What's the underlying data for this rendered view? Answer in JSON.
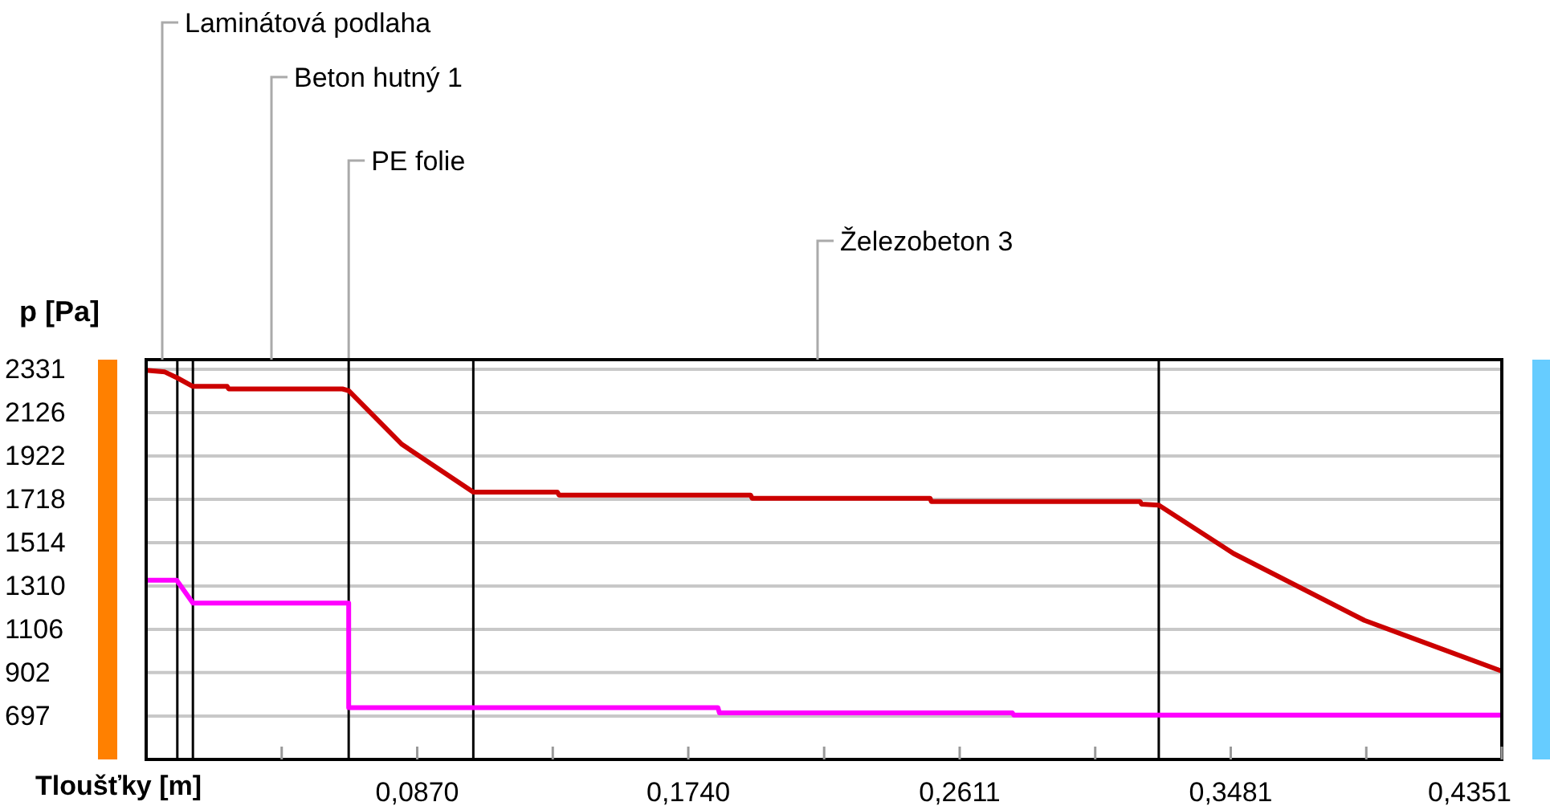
{
  "chart_data": {
    "type": "line",
    "xlabel": "Tloušťky [m]",
    "ylabel": "p [Pa]",
    "xlim": [
      0,
      0.4351
    ],
    "ylim": [
      493,
      2376
    ],
    "xticks": [
      {
        "value": 0.0435,
        "label": null
      },
      {
        "value": 0.087,
        "label": "0,0870"
      },
      {
        "value": 0.1305,
        "label": null
      },
      {
        "value": 0.174,
        "label": "0,1740"
      },
      {
        "value": 0.2176,
        "label": null
      },
      {
        "value": 0.2611,
        "label": "0,2611"
      },
      {
        "value": 0.3046,
        "label": null
      },
      {
        "value": 0.3481,
        "label": "0,3481"
      },
      {
        "value": 0.3916,
        "label": null
      },
      {
        "value": 0.4351,
        "label": "0,4351"
      }
    ],
    "yticks": [
      697,
      902,
      1106,
      1310,
      1514,
      1718,
      1922,
      2126,
      2331
    ],
    "grid": "y",
    "marker": "none",
    "line_style": "solid",
    "series": [
      {
        "color": "#cc0000",
        "x": [
          0,
          0.006,
          0.01,
          0.015,
          0.026,
          0.0265,
          0.063,
          0.065,
          0.082,
          0.105,
          0.132,
          0.1325,
          0.194,
          0.1945,
          0.2516,
          0.252,
          0.319,
          0.3195,
          0.325,
          0.349,
          0.391,
          0.4351
        ],
        "values": [
          2326,
          2318,
          2290,
          2250,
          2250,
          2238,
          2238,
          2230,
          1978,
          1752,
          1752,
          1738,
          1738,
          1723,
          1723,
          1708,
          1708,
          1695,
          1691,
          1463,
          1148,
          909
        ]
      },
      {
        "color": "#ff00ff",
        "x": [
          0,
          0.0098,
          0.015,
          0.065,
          0.065,
          0.1835,
          0.184,
          0.278,
          0.2785,
          0.4351
        ],
        "values": [
          1337,
          1337,
          1229,
          1229,
          737,
          737,
          712,
          712,
          702,
          702
        ]
      }
    ],
    "ref_lines": [
      {
        "axis": "x",
        "value": 0.01,
        "color": "#000000"
      },
      {
        "axis": "x",
        "value": 0.015,
        "color": "#000000"
      },
      {
        "axis": "x",
        "value": 0.065,
        "color": "#000000",
        "label": "PE folie"
      },
      {
        "axis": "x",
        "value": 0.105,
        "color": "#000000"
      },
      {
        "axis": "x",
        "value": 0.325,
        "color": "#000000"
      }
    ],
    "annotations": [
      "Laminátová podlaha",
      "Beton hutný 1",
      "Železobeton 3"
    ]
  }
}
